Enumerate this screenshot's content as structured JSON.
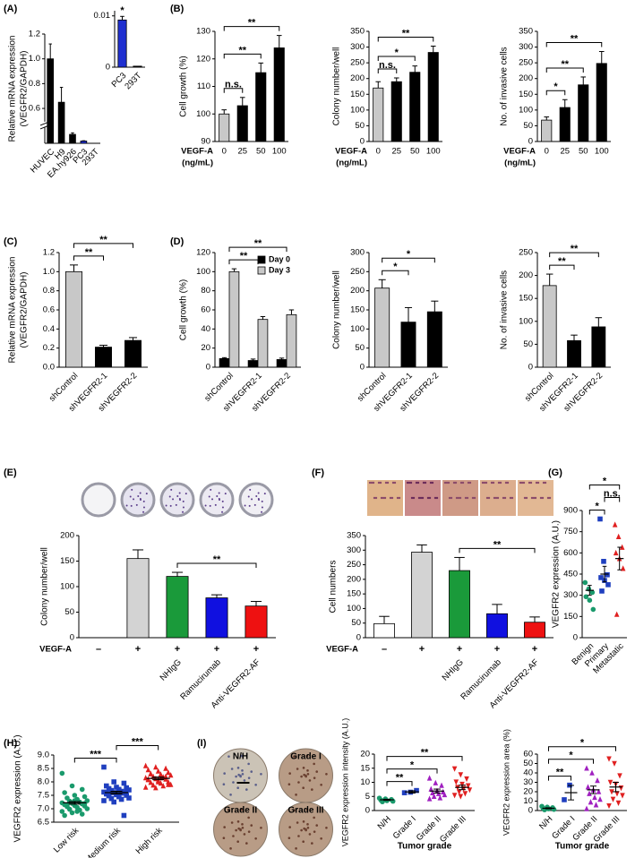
{
  "chart_data": [
    {
      "type": "bar",
      "panel": "(A)",
      "ylabel": [
        "Relative mRNA expression",
        "(VEGFR2/GAPDH)"
      ],
      "categories": [
        "HUVEC",
        "H9",
        "EA.hy926",
        "PC3",
        "293T"
      ],
      "values": [
        1,
        0.65,
        0.035,
        0.009,
        0.0003
      ],
      "errors": [
        0.12,
        0.12,
        0.006,
        0.001,
        null
      ],
      "colors": [
        "#000000",
        "#000000",
        "#000000",
        "#1f2fd0",
        "#000000"
      ],
      "ylim_lower": [
        0,
        0.06
      ],
      "ylim_upper": [
        0.5,
        1.2
      ],
      "yticks": [
        0.6,
        0.8,
        {
          "value": 1,
          "label": "1.0"
        },
        1.2
      ]
    },
    {
      "type": "bar",
      "categories": [
        "PC3",
        "293T"
      ],
      "values": [
        0.0092,
        0.0002
      ],
      "errors": [
        0.0007,
        null
      ],
      "colors": [
        "#1f2fd0",
        "#000000"
      ],
      "ylim": [
        0,
        0.011
      ],
      "yticks": [
        0,
        0.01
      ],
      "bar_labels": [
        "*",
        null
      ]
    },
    {
      "type": "bar",
      "panel": "(B)",
      "ylabel": "Cell growth (%)",
      "xprefix": [
        "VEGF-A",
        "(ng/mL)"
      ],
      "categories": [
        "0",
        "25",
        "50",
        "100"
      ],
      "values": [
        100,
        103,
        115,
        124
      ],
      "errors": [
        1.5,
        3,
        3.5,
        4.5
      ],
      "colors": [
        "#c8c8c8",
        "#000000",
        "#000000",
        "#000000"
      ],
      "ylim": [
        90,
        130
      ],
      "yticks": [
        90,
        100,
        110,
        120,
        130
      ],
      "significance": [
        {
          "from": "0",
          "to": "25",
          "label": "n.s."
        },
        {
          "from": "0",
          "to": "50",
          "label": "**"
        },
        {
          "from": "0",
          "to": "100",
          "label": "**"
        }
      ]
    },
    {
      "type": "bar",
      "ylabel": "Colony number/well",
      "xprefix": [
        "VEGF-A",
        "(ng/mL)"
      ],
      "categories": [
        "0",
        "25",
        "50",
        "100"
      ],
      "values": [
        170,
        190,
        220,
        283
      ],
      "errors": [
        20,
        12,
        20,
        20
      ],
      "colors": [
        "#c8c8c8",
        "#000000",
        "#000000",
        "#000000"
      ],
      "ylim": [
        0,
        350
      ],
      "yticks": [
        0,
        50,
        100,
        150,
        200,
        250,
        300,
        350
      ],
      "significance": [
        {
          "from": "0",
          "to": "25",
          "label": "n.s."
        },
        {
          "from": "0",
          "to": "50",
          "label": "*"
        },
        {
          "from": "0",
          "to": "100",
          "label": "**"
        }
      ]
    },
    {
      "type": "bar",
      "ylabel": "No. of invasive cells",
      "xprefix": [
        "VEGF-A",
        "(ng/mL)"
      ],
      "categories": [
        "0",
        "25",
        "50",
        "100"
      ],
      "values": [
        68,
        108,
        180,
        248
      ],
      "errors": [
        10,
        25,
        25,
        38
      ],
      "colors": [
        "#c8c8c8",
        "#000000",
        "#000000",
        "#000000"
      ],
      "ylim": [
        0,
        350
      ],
      "yticks": [
        0,
        50,
        100,
        150,
        200,
        250,
        300,
        350
      ],
      "significance": [
        {
          "from": "0",
          "to": "25",
          "label": "*"
        },
        {
          "from": "0",
          "to": "50",
          "label": "**"
        },
        {
          "from": "0",
          "to": "100",
          "label": "**"
        }
      ]
    },
    {
      "type": "bar",
      "panel": "(C)",
      "ylabel": [
        "Relative mRNA expression",
        "(VEGFR2/GAPDH)"
      ],
      "categories": [
        "shControl",
        "shVEGFR2-1",
        "shVEGFR2-2"
      ],
      "values": [
        1,
        0.21,
        0.28
      ],
      "errors": [
        0.07,
        0.02,
        0.03
      ],
      "colors": [
        "#c8c8c8",
        "#000000",
        "#000000"
      ],
      "ylim": [
        0,
        1.2
      ],
      "yticks": [
        {
          "value": 0,
          "label": "0.0"
        },
        0.2,
        0.4,
        0.6,
        0.8,
        {
          "value": 1,
          "label": "1.0"
        },
        1.2
      ],
      "significance": [
        {
          "from": "shControl",
          "to": "shVEGFR2-1",
          "label": "**"
        },
        {
          "from": "shControl",
          "to": "shVEGFR2-2",
          "label": "**"
        }
      ]
    },
    {
      "type": "bar",
      "panel": "(D)",
      "ylabel": "Cell growth (%)",
      "categories": [
        "shControl",
        "shVEGFR2-1",
        "shVEGFR2-2"
      ],
      "series": [
        {
          "name": "Day 0",
          "color": "#000000",
          "values": [
            9,
            7,
            8
          ],
          "errors": [
            1,
            1.5,
            1.5
          ]
        },
        {
          "name": "Day 3",
          "color": "#c8c8c8",
          "values": [
            100,
            50,
            55
          ],
          "errors": [
            3,
            3,
            5
          ]
        }
      ],
      "legend": "upper right",
      "ylim": [
        0,
        120
      ],
      "yticks": [
        0,
        20,
        40,
        60,
        80,
        100,
        120
      ],
      "significance": [
        {
          "from": "shControl",
          "to": "shVEGFR2-1",
          "label": "**"
        },
        {
          "from": "shControl",
          "to": "shVEGFR2-2",
          "label": "**"
        }
      ]
    },
    {
      "type": "bar",
      "ylabel": "Colony number/well",
      "categories": [
        "shControl",
        "shVEGFR2-1",
        "shVEGFR2-2"
      ],
      "values": [
        207,
        118,
        145
      ],
      "errors": [
        22,
        38,
        28
      ],
      "colors": [
        "#c8c8c8",
        "#000000",
        "#000000"
      ],
      "ylim": [
        0,
        300
      ],
      "yticks": [
        0,
        50,
        100,
        150,
        200,
        250,
        300
      ],
      "significance": [
        {
          "from": "shControl",
          "to": "shVEGFR2-1",
          "label": "*"
        },
        {
          "from": "shControl",
          "to": "shVEGFR2-2",
          "label": "*"
        }
      ]
    },
    {
      "type": "bar",
      "ylabel": "No. of invasive cells",
      "categories": [
        "shControl",
        "shVEGFR2-1",
        "shVEGFR2-2"
      ],
      "values": [
        178,
        58,
        88
      ],
      "errors": [
        25,
        12,
        20
      ],
      "colors": [
        "#c8c8c8",
        "#000000",
        "#000000"
      ],
      "ylim": [
        0,
        250
      ],
      "yticks": [
        0,
        50,
        100,
        150,
        200,
        250
      ],
      "significance": [
        {
          "from": "shControl",
          "to": "shVEGFR2-1",
          "label": "**"
        },
        {
          "from": "shControl",
          "to": "shVEGFR2-2",
          "label": "**"
        }
      ]
    },
    {
      "type": "bar",
      "panel": "(E)",
      "ylabel": "Colony number/well",
      "condition_label": "VEGF-A",
      "conditions": [
        "–",
        "+",
        "+",
        "+",
        "+"
      ],
      "categories": [
        null,
        null,
        "NHIgG",
        "Ramucirumab",
        "Anti-VEGFR2-AF"
      ],
      "values": [
        0,
        155,
        120,
        78,
        62
      ],
      "errors": [
        null,
        17,
        8,
        6,
        9
      ],
      "colors": [
        "#ffffff",
        "#d3d3d3",
        "#1a9a3a",
        "#1010e0",
        "#ee1111"
      ],
      "ylim": [
        0,
        200
      ],
      "yticks": [
        0,
        50,
        100,
        150,
        200
      ],
      "significance": [
        {
          "from": "NHIgG",
          "to": "Anti-VEGFR2-AF",
          "label": "**"
        }
      ]
    },
    {
      "type": "bar",
      "panel": "(F)",
      "ylabel": "Cell numbers",
      "condition_label": "VEGF-A",
      "conditions": [
        "–",
        "+",
        "+",
        "+",
        "+"
      ],
      "categories": [
        null,
        null,
        "NHIgG",
        "Ramucirumab",
        "Anti-VEGFR2-AF"
      ],
      "values": [
        48,
        293,
        230,
        82,
        53
      ],
      "errors": [
        25,
        25,
        45,
        32,
        18
      ],
      "colors": [
        "#ffffff",
        "#d3d3d3",
        "#1a9a3a",
        "#1010e0",
        "#ee1111"
      ],
      "ylim": [
        0,
        350
      ],
      "yticks": [
        0,
        50,
        100,
        150,
        200,
        250,
        300,
        350
      ],
      "significance": [
        {
          "from": "NHIgG",
          "to": "Anti-VEGFR2-AF",
          "label": "**"
        }
      ]
    },
    {
      "type": "dot",
      "panel": "(G)",
      "ylabel": "VEGFR2 expression (A.U.)",
      "ylim": [
        0,
        900
      ],
      "yticks": [
        0,
        150,
        300,
        450,
        600,
        750,
        900
      ],
      "series": [
        {
          "name": "Benign",
          "color": "#1a9a6c",
          "marker": "circle",
          "values": [
            390,
            345,
            320,
            290,
            265,
            200
          ],
          "mean": 335,
          "sem": 35
        },
        {
          "name": "Primary",
          "color": "#1f3fbf",
          "marker": "square",
          "values": [
            840,
            540,
            445,
            425,
            405,
            375,
            330
          ],
          "mean": 450,
          "sem": 55
        },
        {
          "name": "Metastatic",
          "color": "#e02020",
          "marker": "triangle",
          "values": [
            800,
            715,
            640,
            600,
            560,
            490,
            165
          ],
          "mean": 560,
          "sem": 80
        }
      ],
      "significance": [
        {
          "from": "Benign",
          "to": "Primary",
          "label": "*"
        },
        {
          "from": "Primary",
          "to": "Metastatic",
          "label": "n.s."
        },
        {
          "from": "Benign",
          "to": "Metastatic",
          "label": "*"
        }
      ]
    },
    {
      "type": "dot",
      "panel": "(H)",
      "ylabel": "VEGFR2 expression (A.U.)",
      "ylim": [
        6.5,
        9
      ],
      "yticks": [
        6.5,
        {
          "value": 7,
          "label": "7.0"
        },
        7.5,
        {
          "value": 8,
          "label": "8.0"
        },
        8.5,
        {
          "value": 9,
          "label": "9.0"
        }
      ],
      "series": [
        {
          "name": "Low risk",
          "color": "#1a9a6c",
          "marker": "circle",
          "values": [
            8.32,
            7.85,
            7.72,
            7.6,
            7.5,
            7.45,
            7.4,
            7.35,
            7.3,
            7.28,
            7.25,
            7.22,
            7.2,
            7.18,
            7.15,
            7.12,
            7.1,
            7.08,
            7.05,
            7.0,
            6.98,
            6.95,
            6.9,
            6.85,
            6.8,
            6.75,
            7.3,
            7.2,
            7.15,
            6.9
          ],
          "mean": 7.22,
          "sem": 0.05
        },
        {
          "name": "Medium risk",
          "color": "#1f3fbf",
          "marker": "square",
          "values": [
            8.55,
            8.0,
            7.95,
            7.85,
            7.8,
            7.78,
            7.75,
            7.72,
            7.7,
            7.68,
            7.65,
            7.62,
            7.6,
            7.58,
            7.55,
            7.52,
            7.5,
            7.48,
            7.45,
            7.4,
            7.38,
            7.35,
            7.3,
            7.25,
            6.75,
            7.6,
            7.55,
            7.7,
            7.5,
            7.45
          ],
          "mean": 7.6,
          "sem": 0.05
        },
        {
          "name": "High risk",
          "color": "#e02020",
          "marker": "triangle",
          "values": [
            8.6,
            8.55,
            8.5,
            8.45,
            8.4,
            8.35,
            8.3,
            8.28,
            8.25,
            8.2,
            8.18,
            8.15,
            8.12,
            8.1,
            8.08,
            8.05,
            8.0,
            7.98,
            7.95,
            7.9,
            7.88,
            7.85,
            7.8,
            7.78,
            8.2,
            8.1,
            8.0,
            7.9,
            8.3,
            8.15
          ],
          "mean": 8.13,
          "sem": 0.05
        }
      ],
      "significance": [
        {
          "from": "Low risk",
          "to": "Medium risk",
          "label": "***"
        },
        {
          "from": "Medium risk",
          "to": "High risk",
          "label": "***"
        }
      ]
    },
    {
      "type": "image-grid",
      "panel": "(I)",
      "labels": [
        "N/H",
        "Grade I",
        "Grade II",
        "Grade III"
      ]
    },
    {
      "type": "dot",
      "ylabel": "VEGFR2 expression intensity (A.U.)",
      "xlabel": "Tumor grade",
      "ylim": [
        0,
        20
      ],
      "yticks": [
        0,
        5,
        10,
        15,
        20
      ],
      "series": [
        {
          "name": "N/H",
          "color": "#1a9a6c",
          "marker": "circle",
          "values": [
            4.4,
            4.1,
            3.9,
            3.7,
            3.5,
            3.3,
            3.1
          ],
          "mean": 3.8,
          "sem": 0.2
        },
        {
          "name": "Grade I",
          "color": "#1f3fbf",
          "marker": "square",
          "values": [
            6.3,
            6.5,
            7.1
          ],
          "mean": 6.6,
          "sem": 0.4
        },
        {
          "name": "Grade II",
          "color": "#a020c0",
          "marker": "triangle",
          "values": [
            11.5,
            9.8,
            8.9,
            7.6,
            7.0,
            6.6,
            6.3,
            6.0,
            5.6,
            5.0,
            4.5,
            4.2
          ],
          "mean": 6.9,
          "sem": 0.7
        },
        {
          "name": "Grade III",
          "color": "#e02020",
          "marker": "triangle-down",
          "values": [
            14.8,
            12.7,
            11.2,
            10.1,
            9.3,
            8.8,
            8.2,
            7.8,
            7.3,
            6.6,
            6.0,
            5.4,
            5.0
          ],
          "mean": 8.2,
          "sem": 0.8
        }
      ],
      "significance": [
        {
          "from": "N/H",
          "to": "Grade I",
          "label": "**"
        },
        {
          "from": "N/H",
          "to": "Grade II",
          "label": "*"
        },
        {
          "from": "N/H",
          "to": "Grade III",
          "label": "**"
        }
      ]
    },
    {
      "type": "dot",
      "ylabel": "VEGFR2 expression area (%)",
      "xlabel": "Tumor grade",
      "ylim": [
        0,
        60
      ],
      "yticks": [
        0,
        10,
        20,
        30,
        40,
        50,
        60
      ],
      "series": [
        {
          "name": "N/H",
          "color": "#1a9a6c",
          "marker": "circle",
          "values": [
            4.5,
            3.6,
            3.0,
            2.4,
            1.8,
            1.2,
            0.8
          ],
          "mean": 2.4,
          "sem": 0.5
        },
        {
          "name": "Grade I",
          "color": "#1f3fbf",
          "marker": "square",
          "values": [
            11.5,
            27
          ],
          "mean": 19,
          "sem": 7.7
        },
        {
          "name": "Grade II",
          "color": "#a020c0",
          "marker": "triangle",
          "values": [
            45,
            40,
            32,
            25,
            22,
            20,
            18,
            14,
            12,
            9,
            6,
            2
          ],
          "mean": 22,
          "sem": 4
        },
        {
          "name": "Grade III",
          "color": "#e02020",
          "marker": "triangle-down",
          "values": [
            55,
            50,
            37,
            30,
            28,
            24,
            20,
            18,
            16,
            12,
            8,
            5
          ],
          "mean": 25,
          "sem": 5
        }
      ],
      "significance": [
        {
          "from": "N/H",
          "to": "Grade I",
          "label": "**"
        },
        {
          "from": "N/H",
          "to": "Grade II",
          "label": "*"
        },
        {
          "from": "N/H",
          "to": "Grade III",
          "label": "*"
        }
      ]
    }
  ]
}
